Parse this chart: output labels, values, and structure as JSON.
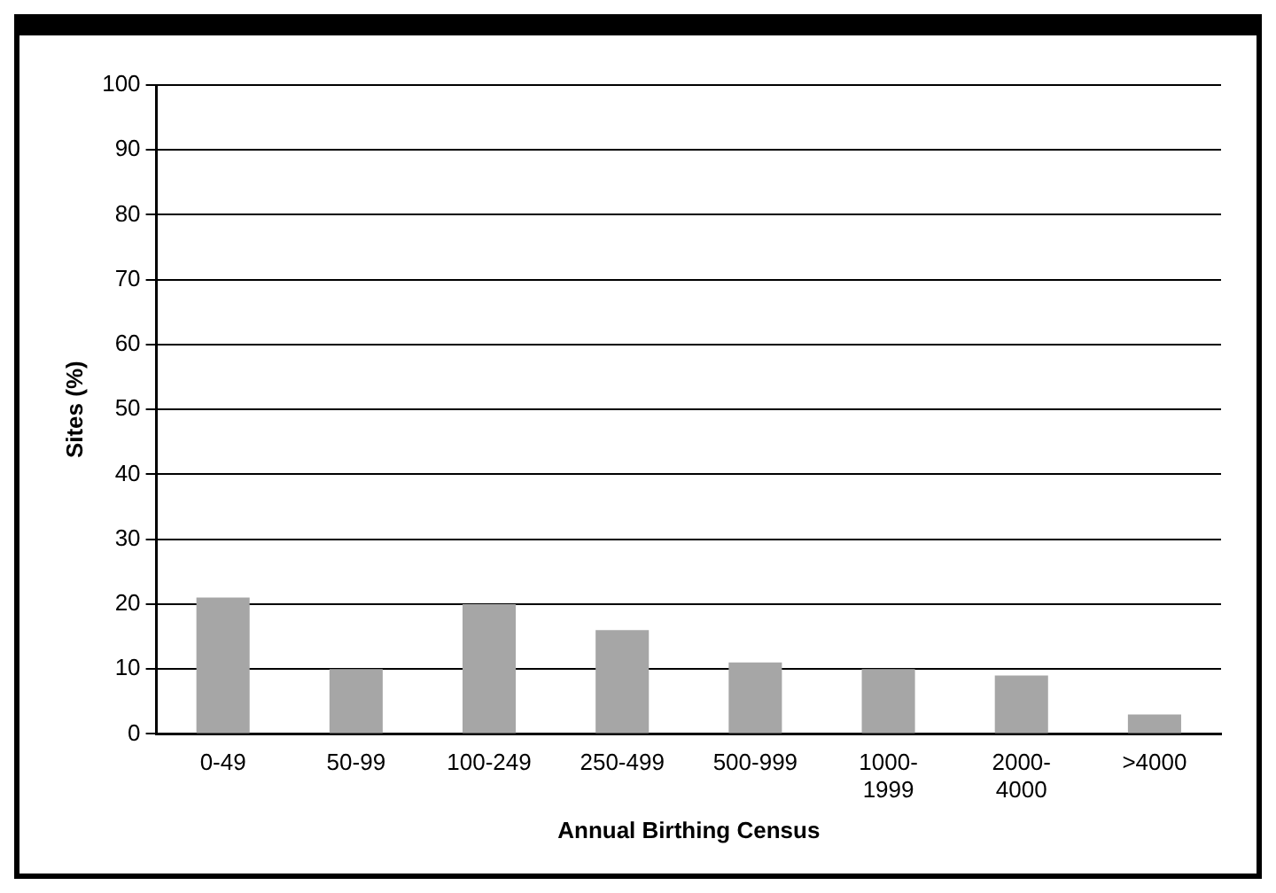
{
  "chart_data": {
    "type": "bar",
    "xlabel": "Annual Birthing Census",
    "ylabel": "Sites (%)",
    "categories": [
      "0-49",
      "50-99",
      "100-249",
      "250-499",
      "500-999",
      "1000-1999",
      "2000-4000",
      ">4000"
    ],
    "values": [
      21,
      10,
      20,
      16,
      11,
      10,
      9,
      3
    ],
    "color": "#a6a6a6",
    "ylim": [
      0,
      100
    ],
    "yticks": [
      0,
      10,
      20,
      30,
      40,
      50,
      60,
      70,
      80,
      90,
      100
    ],
    "grid": "y",
    "legend": false
  }
}
